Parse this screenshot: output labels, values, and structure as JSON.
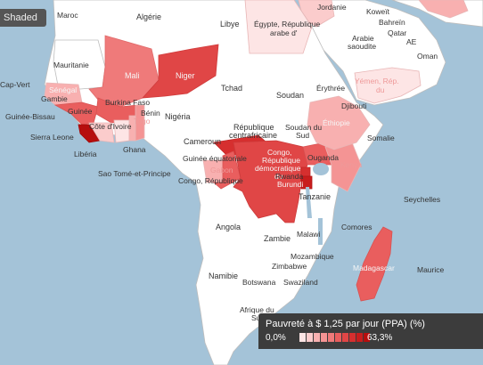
{
  "toolbar": {
    "shaded_label": "Shaded"
  },
  "legend": {
    "title": "Pauvreté à $ 1,25 par jour (PPA) (%)",
    "min_label": "0,0%",
    "max_label": "63,3%",
    "min_value": 0.0,
    "max_value": 63.3,
    "colors": [
      "#fde5e5",
      "#fbcccc",
      "#f8b0b0",
      "#f49494",
      "#ef7a7a",
      "#e95e5e",
      "#e04646",
      "#d62f2f",
      "#c81d1d",
      "#b60d0d"
    ]
  },
  "colors": {
    "sea": "#a4c3d8",
    "land": "#ffffff",
    "border": "#bdbdbd",
    "lake": "#a4c3d8"
  },
  "chart_data": {
    "type": "choropleth",
    "title": "Pauvreté à $ 1,25 par jour (PPA) (%)",
    "color_range": [
      0.0,
      63.3
    ],
    "shaded_countries": [
      {
        "name": "Mali",
        "shade": 4
      },
      {
        "name": "Niger",
        "shade": 6
      },
      {
        "name": "Sénégal",
        "shade": 3
      },
      {
        "name": "Gambie",
        "shade": 3
      },
      {
        "name": "Burkina Faso",
        "shade": 5
      },
      {
        "name": "Guinée",
        "shade": 5
      },
      {
        "name": "Libéria",
        "shade": 9
      },
      {
        "name": "Côte d'Ivoire",
        "shade": 2
      },
      {
        "name": "Ghana",
        "shade": 2
      },
      {
        "name": "Togo",
        "shade": 3
      },
      {
        "name": "Bénin",
        "shade": 4
      },
      {
        "name": "Égypte",
        "shade": 0
      },
      {
        "name": "Yémen, Rép. du",
        "shade": 1
      },
      {
        "name": "Éthiopie",
        "shade": 3
      },
      {
        "name": "Kenya",
        "shade": 4
      },
      {
        "name": "Ouganda",
        "shade": 5
      },
      {
        "name": "Rwanda",
        "shade": 7
      },
      {
        "name": "Burundi",
        "shade": 8
      },
      {
        "name": "Congo, République démocratique du",
        "shade": 8
      },
      {
        "name": "Congo, République",
        "shade": 5
      },
      {
        "name": "République centrafricaine",
        "shade": 7
      },
      {
        "name": "Gabon",
        "shade": 3
      },
      {
        "name": "Madagascar",
        "shade": 8
      },
      {
        "name": "Djibouti",
        "shade": 2
      }
    ]
  },
  "labels": {
    "algerie": "Algérie",
    "libye": "Libye",
    "egypte": "Égypte, République",
    "egypte2": "arabe d'",
    "jordanie": "Jordanie",
    "koweit": "Koweït",
    "bahrein": "Bahreïn",
    "arabie": "Arabie",
    "arabie2": "saoudite",
    "qatar": "Qatar",
    "ae": "AE",
    "oman": "Oman",
    "yemen": "Yémen, Rép.",
    "yemen2": "du",
    "maroc": "Maroc",
    "mauritanie": "Mauritanie",
    "mali": "Mali",
    "niger": "Niger",
    "tchad": "Tchad",
    "soudan": "Soudan",
    "erythree": "Érythrée",
    "djibouti": "Djibouti",
    "ethiopie": "Éthiopie",
    "somalie": "Somalie",
    "capvert": "Cap-Vert",
    "senegal": "Sénégal",
    "gambie": "Gambie",
    "guineebissau": "Guinée-Bissau",
    "guinee": "Guinée",
    "sierraleone": "Sierra Leone",
    "liberia": "Libéria",
    "cotedivoire": "Côte d'Ivoire",
    "burkina": "Burkina Faso",
    "ghana": "Ghana",
    "togo": "Togo",
    "benin": "Bénin",
    "nigeria": "Nigéria",
    "cameroun": "Cameroun",
    "rca1": "République",
    "rca2": "centrafricaine",
    "soudansud1": "Soudan du",
    "soudansud2": "Sud",
    "guineeeq": "Guinée équatoriale",
    "saotome": "Sao Tomé-et-Principe",
    "gabon": "Gabon",
    "congorep": "Congo, République",
    "rdc1": "Congo,",
    "rdc2": "République",
    "rdc3": "démocratique",
    "rdc4": "du",
    "ouganda": "Ouganda",
    "kenya": "Kenya",
    "rwanda": "Rwanda",
    "burundi": "Burundi",
    "tanzanie": "Tanzanie",
    "seychelles": "Seychelles",
    "comores": "Comores",
    "angola": "Angola",
    "zambie": "Zambie",
    "malawi": "Malawi",
    "mozambique": "Mozambique",
    "madagascar": "Madagascar",
    "maurice": "Maurice",
    "namibie": "Namibie",
    "zimbabwe": "Zimbabwe",
    "botswana": "Botswana",
    "swaziland": "Swaziland",
    "afriquesud1": "Afrique du",
    "afriquesud2": "Sud"
  }
}
